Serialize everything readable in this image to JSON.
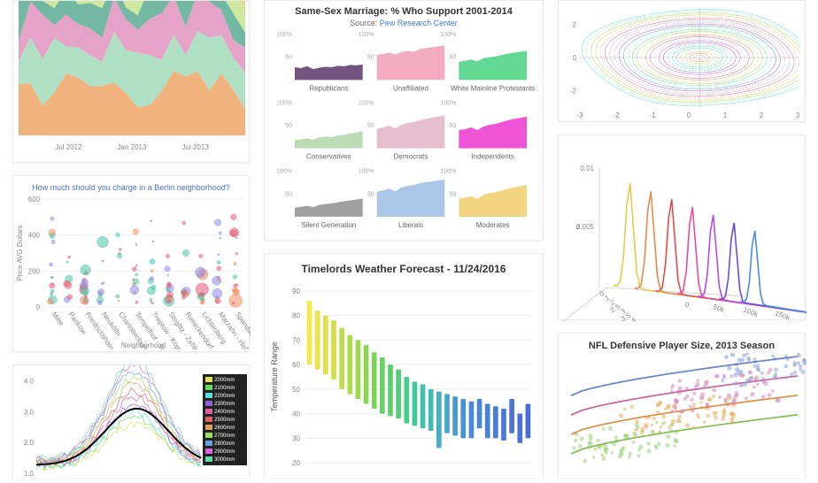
{
  "stacked": {
    "type": "area",
    "x_labels": [
      "Jul 2012",
      "Jan 2013",
      "Jul 2013"
    ],
    "colors": [
      "#f4a26e",
      "#8fcf8a",
      "#b7a3dd",
      "#f39bbd",
      "#7fc9c0",
      "#efc770",
      "#a0c8ee",
      "#e2b6e6",
      "#9bdca1",
      "#f7cc7a",
      "#cfe8a0",
      "#72b8a3",
      "#e6a3c8",
      "#b0e0c4",
      "#f0b37e"
    ],
    "n_points": 20,
    "background_color": "#ffffff",
    "tick_color": "#bbbbbb",
    "label_fontsize": 9
  },
  "berlin": {
    "type": "scatter",
    "title": "How much should you charge in a Berlin neighborhood?",
    "title_color": "#4a6fd6",
    "title_fontsize": 9,
    "ylabel": "Price AVG Dollars",
    "xlabel": "Neighborhood",
    "label_fontsize": 8,
    "ylim": [
      0,
      600
    ],
    "ytick_step": 200,
    "categories": [
      "Mitte",
      "Pankow",
      "Friedrichshain-Kreuzberg",
      "Neukölln",
      "Charlottenburg",
      "Tempelhof - Schöneberg",
      "Treptow - Köpenick",
      "Steglitz - Zehlendorf",
      "Reinickendorf",
      "Lichtenberg",
      "Marzahn - Hellersdorf",
      "Spandau"
    ],
    "bubble_colors": [
      "#8b8be6",
      "#4cc4a7",
      "#f08a5d",
      "#e65a7a"
    ],
    "max_bubble_r": 8,
    "min_bubble_r": 1,
    "grid_color": "#eeeeee"
  },
  "smallmult": {
    "type": "area",
    "title": "Same-Sex Marriage: % Who Support 2001-2014",
    "source_prefix": "Source: ",
    "source_link": "Pew Research Center",
    "ylim": [
      0,
      100
    ],
    "yticks": [
      50,
      100
    ],
    "panels": [
      {
        "label": "Republicans",
        "color": "#6b4a78",
        "values": [
          28,
          26,
          30,
          24,
          27,
          29,
          28,
          31,
          30,
          33,
          32,
          34
        ]
      },
      {
        "label": "Unaffiliated",
        "color": "#f2a6be",
        "values": [
          55,
          57,
          60,
          56,
          61,
          64,
          62,
          68,
          70,
          72,
          74,
          76
        ]
      },
      {
        "label": "White Mainline Protestants",
        "color": "#5bd68d",
        "values": [
          40,
          42,
          45,
          41,
          48,
          50,
          52,
          55,
          58,
          60,
          62,
          64
        ]
      },
      {
        "label": "Conservatives",
        "color": "#b8d9b0",
        "values": [
          18,
          20,
          22,
          19,
          24,
          26,
          25,
          28,
          30,
          33,
          35,
          38
        ]
      },
      {
        "label": "Democrats",
        "color": "#e4bccb",
        "values": [
          43,
          46,
          50,
          44,
          52,
          56,
          58,
          62,
          65,
          68,
          70,
          73
        ]
      },
      {
        "label": "Independents",
        "color": "#ee4bd4",
        "values": [
          40,
          42,
          46,
          40,
          48,
          52,
          54,
          58,
          62,
          65,
          67,
          70
        ]
      },
      {
        "label": "Silent Generation",
        "color": "#9a9a9a",
        "values": [
          20,
          22,
          24,
          21,
          26,
          28,
          29,
          32,
          34,
          36,
          38,
          40
        ]
      },
      {
        "label": "Liberals",
        "color": "#a7c3e6",
        "values": [
          55,
          58,
          62,
          56,
          65,
          68,
          70,
          74,
          76,
          78,
          80,
          82
        ]
      },
      {
        "label": "Moderates",
        "color": "#f2d37a",
        "values": [
          40,
          42,
          45,
          40,
          48,
          52,
          54,
          58,
          62,
          65,
          67,
          70
        ]
      }
    ],
    "label_fontsize": 8,
    "tick_fontsize": 7,
    "tick_color": "#aaaaaa"
  },
  "weather": {
    "type": "boxplot",
    "title": "Timelords Weather Forecast - 11/24/2016",
    "ylabel": "Temperature Range",
    "ylim": [
      20,
      90
    ],
    "ytick_step": 10,
    "n": 28,
    "color_start": "#f2e84a",
    "color_mid": "#5bcf7a",
    "color_end": "#4a88d6",
    "grid_color": "#ececec",
    "label_fontsize": 9,
    "boxes": [
      {
        "lo": 60,
        "hi": 86,
        "c": "#f2e84a"
      },
      {
        "lo": 58,
        "hi": 82,
        "c": "#e8e44a"
      },
      {
        "lo": 56,
        "hi": 80,
        "c": "#dfe04a"
      },
      {
        "lo": 54,
        "hi": 78,
        "c": "#d0de4a"
      },
      {
        "lo": 50,
        "hi": 75,
        "c": "#c0dc4a"
      },
      {
        "lo": 48,
        "hi": 72,
        "c": "#b0da4c"
      },
      {
        "lo": 46,
        "hi": 70,
        "c": "#9ed850"
      },
      {
        "lo": 44,
        "hi": 68,
        "c": "#8cd654"
      },
      {
        "lo": 42,
        "hi": 65,
        "c": "#7ad458"
      },
      {
        "lo": 40,
        "hi": 63,
        "c": "#6ad260"
      },
      {
        "lo": 39,
        "hi": 60,
        "c": "#5bd06a"
      },
      {
        "lo": 38,
        "hi": 58,
        "c": "#50ce78"
      },
      {
        "lo": 36,
        "hi": 55,
        "c": "#48cc88"
      },
      {
        "lo": 35,
        "hi": 53,
        "c": "#44c89a"
      },
      {
        "lo": 34,
        "hi": 52,
        "c": "#42c2aa"
      },
      {
        "lo": 33,
        "hi": 50,
        "c": "#42bab8"
      },
      {
        "lo": 26,
        "hi": 49,
        "c": "#42b0c2"
      },
      {
        "lo": 32,
        "hi": 48,
        "c": "#44a6cc"
      },
      {
        "lo": 31,
        "hi": 47,
        "c": "#469cd2"
      },
      {
        "lo": 30,
        "hi": 46,
        "c": "#4892d6"
      },
      {
        "lo": 30,
        "hi": 45,
        "c": "#4a8ad8"
      },
      {
        "lo": 34,
        "hi": 46,
        "c": "#4a84d8"
      },
      {
        "lo": 30,
        "hi": 44,
        "c": "#4a80d8"
      },
      {
        "lo": 30,
        "hi": 43,
        "c": "#4a7cd8"
      },
      {
        "lo": 29,
        "hi": 42,
        "c": "#4a78d8"
      },
      {
        "lo": 32,
        "hi": 46,
        "c": "#4a74d8"
      },
      {
        "lo": 28,
        "hi": 40,
        "c": "#4a70d8"
      },
      {
        "lo": 30,
        "hi": 44,
        "c": "#4a6cd8"
      }
    ]
  },
  "contour": {
    "type": "line",
    "xlim": [
      -3,
      3
    ],
    "ylim": [
      -3,
      3
    ],
    "xtick_step": 1,
    "ytick_step": 2,
    "colors": [
      "#e06a9a",
      "#e0a06a",
      "#e0d06a",
      "#a0e06a",
      "#6ae0a0",
      "#6ae0e0",
      "#6aa0e0",
      "#a06ae0",
      "#e06ad0",
      "#c0c0c0"
    ],
    "grid_color": "#cccccc",
    "label_fontsize": 8
  },
  "ridge3d": {
    "type": "line",
    "zlabel": "z",
    "zticks": [
      0.005,
      0.01
    ],
    "yticks": [
      0,
      1,
      2,
      2.5,
      3,
      3.5,
      4,
      4.5
    ],
    "xticks": [
      "0",
      "50k",
      "100k",
      "150k"
    ],
    "colors": [
      "#e6c94a",
      "#e68a4a",
      "#e64a4a",
      "#e64aa0",
      "#b84ae6",
      "#6a4ae6",
      "#4a8ae6"
    ],
    "label_fontsize": 8
  },
  "nfl": {
    "type": "scatter",
    "title": "NFL Defensive Player Size, 2013 Season",
    "colors": [
      "#9ed07a",
      "#e6b06a",
      "#d48ab8",
      "#8a9ed4"
    ],
    "trend_colors": [
      "#7ab84a",
      "#d68a3a",
      "#c05a9a",
      "#5a7ac0"
    ],
    "label_fontsize": 11,
    "n_per_series": 70
  },
  "multiline": {
    "type": "line",
    "yticks": [
      1.0,
      2.0,
      3.0,
      4.0
    ],
    "legend_items": [
      "2000mm",
      "2100mm",
      "2200mm",
      "2300mm",
      "2400mm",
      "2500mm",
      "2600mm",
      "2700mm",
      "2800mm",
      "2900mm",
      "3000mm"
    ],
    "legend_bg": "#222222",
    "legend_colors": [
      "#e0e060",
      "#60e060",
      "#60e0e0",
      "#9060e0",
      "#e060a0",
      "#e06060",
      "#e0a060",
      "#a0e060",
      "#60a0e0",
      "#e060e0",
      "#60e0a0"
    ],
    "highlight_color": "#000000",
    "label_fontsize": 7
  }
}
